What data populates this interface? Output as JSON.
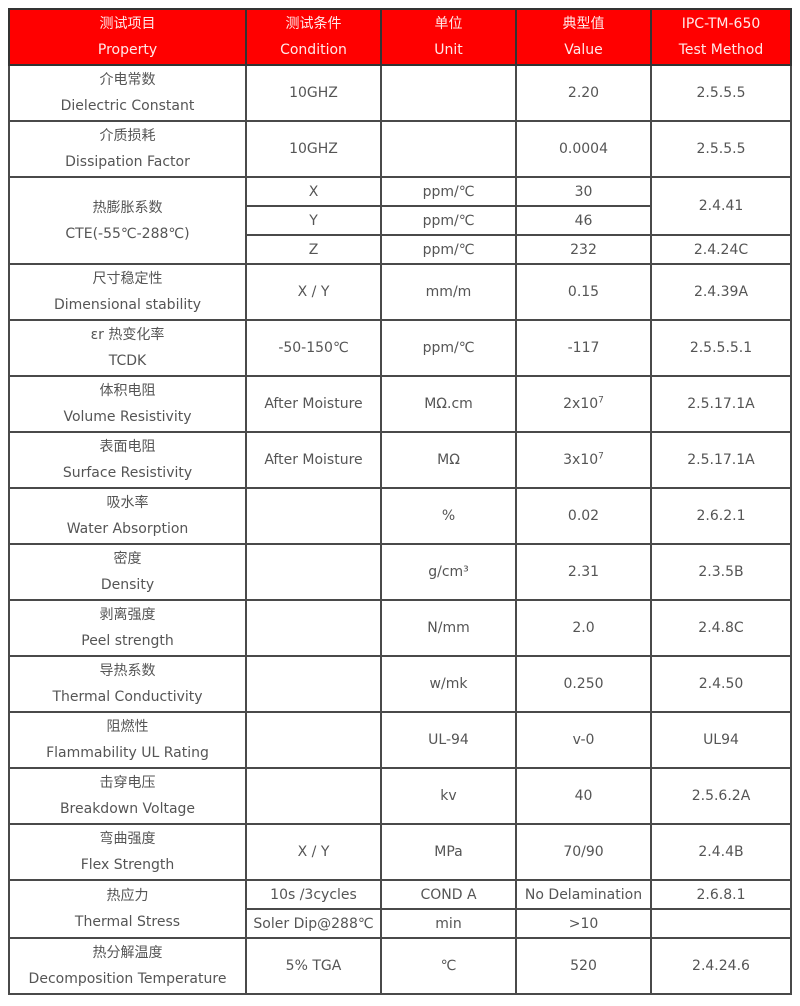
{
  "header": [
    {
      "zh": "测试项目",
      "en": "Property"
    },
    {
      "zh": "测试条件",
      "en": "Condition"
    },
    {
      "zh": "单位",
      "en": "Unit"
    },
    {
      "zh": "典型值",
      "en": "Value"
    },
    {
      "zh": "IPC-TM-650",
      "en": "Test Method"
    }
  ],
  "rows": [
    [
      {
        "zh": "介电常数",
        "en": "Dielectric Constant"
      },
      {
        "t": "10GHZ"
      },
      {
        "t": ""
      },
      {
        "t": "2.20"
      },
      {
        "t": "2.5.5.5"
      }
    ],
    [
      {
        "zh": "介质损耗",
        "en": "Dissipation Factor"
      },
      {
        "t": "10GHZ"
      },
      {
        "t": ""
      },
      {
        "t": "0.0004"
      },
      {
        "t": "2.5.5.5"
      }
    ],
    [
      {
        "zh": "热膨胀系数",
        "en": "CTE(-55℃-288℃)",
        "rs": 3
      },
      {
        "t": "X"
      },
      {
        "t": "ppm/℃"
      },
      {
        "t": "30"
      },
      {
        "t": "2.4.41",
        "rs": 2
      }
    ],
    [
      {
        "t": "Y"
      },
      {
        "t": "ppm/℃"
      },
      {
        "t": "46"
      }
    ],
    [
      {
        "t": "Z"
      },
      {
        "t": "ppm/℃"
      },
      {
        "t": "232"
      },
      {
        "t": "2.4.24C"
      }
    ],
    [
      {
        "zh": "尺寸稳定性",
        "en": "Dimensional stability"
      },
      {
        "t": "X / Y"
      },
      {
        "t": "mm/m"
      },
      {
        "t": "0.15"
      },
      {
        "t": "2.4.39A"
      }
    ],
    [
      {
        "zh": "εr 热变化率",
        "en": "TCDK"
      },
      {
        "t": "-50-150℃"
      },
      {
        "t": "ppm/℃"
      },
      {
        "t": "-117"
      },
      {
        "t": "2.5.5.5.1"
      }
    ],
    [
      {
        "zh": "体积电阻",
        "en": "Volume Resistivity"
      },
      {
        "t": "After Moisture"
      },
      {
        "t": "MΩ.cm"
      },
      {
        "t": "2x10",
        "sup": "7"
      },
      {
        "t": "2.5.17.1A"
      }
    ],
    [
      {
        "zh": "表面电阻",
        "en": "Surface Resistivity"
      },
      {
        "t": "After Moisture"
      },
      {
        "t": "MΩ"
      },
      {
        "t": "3x10",
        "sup": "7"
      },
      {
        "t": "2.5.17.1A"
      }
    ],
    [
      {
        "zh": "吸水率",
        "en": "Water Absorption"
      },
      {
        "t": ""
      },
      {
        "t": "%"
      },
      {
        "t": "0.02"
      },
      {
        "t": "2.6.2.1"
      }
    ],
    [
      {
        "zh": "密度",
        "en": "Density"
      },
      {
        "t": ""
      },
      {
        "t": "g/cm³"
      },
      {
        "t": "2.31"
      },
      {
        "t": "2.3.5B"
      }
    ],
    [
      {
        "zh": "剥离强度",
        "en": "Peel strength"
      },
      {
        "t": ""
      },
      {
        "t": "N/mm"
      },
      {
        "t": "2.0"
      },
      {
        "t": "2.4.8C"
      }
    ],
    [
      {
        "zh": "导热系数",
        "en": "Thermal Conductivity"
      },
      {
        "t": ""
      },
      {
        "t": "w/mk"
      },
      {
        "t": "0.250"
      },
      {
        "t": "2.4.50"
      }
    ],
    [
      {
        "zh": "阻燃性",
        "en": "Flammability UL Rating"
      },
      {
        "t": ""
      },
      {
        "t": "UL-94"
      },
      {
        "t": "v-0"
      },
      {
        "t": "UL94"
      }
    ],
    [
      {
        "zh": "击穿电压",
        "en": "Breakdown Voltage"
      },
      {
        "t": ""
      },
      {
        "t": "kv"
      },
      {
        "t": "40"
      },
      {
        "t": "2.5.6.2A"
      }
    ],
    [
      {
        "zh": "弯曲强度",
        "en": "Flex Strength"
      },
      {
        "t": "X / Y"
      },
      {
        "t": "MPa"
      },
      {
        "t": "70/90"
      },
      {
        "t": "2.4.4B"
      }
    ],
    [
      {
        "zh": "热应力",
        "en": "Thermal Stress",
        "rs": 2
      },
      {
        "t": "10s /3cycles"
      },
      {
        "t": "COND A"
      },
      {
        "t": "No Delamination"
      },
      {
        "t": "2.6.8.1"
      }
    ],
    [
      {
        "t": "Soler Dip@288℃"
      },
      {
        "t": "min"
      },
      {
        "t": ">10"
      },
      {
        "t": ""
      }
    ],
    [
      {
        "zh": "热分解温度",
        "en": "Decomposition Temperature"
      },
      {
        "t": "5% TGA"
      },
      {
        "t": "℃"
      },
      {
        "t": "520"
      },
      {
        "t": "2.4.24.6"
      }
    ]
  ]
}
